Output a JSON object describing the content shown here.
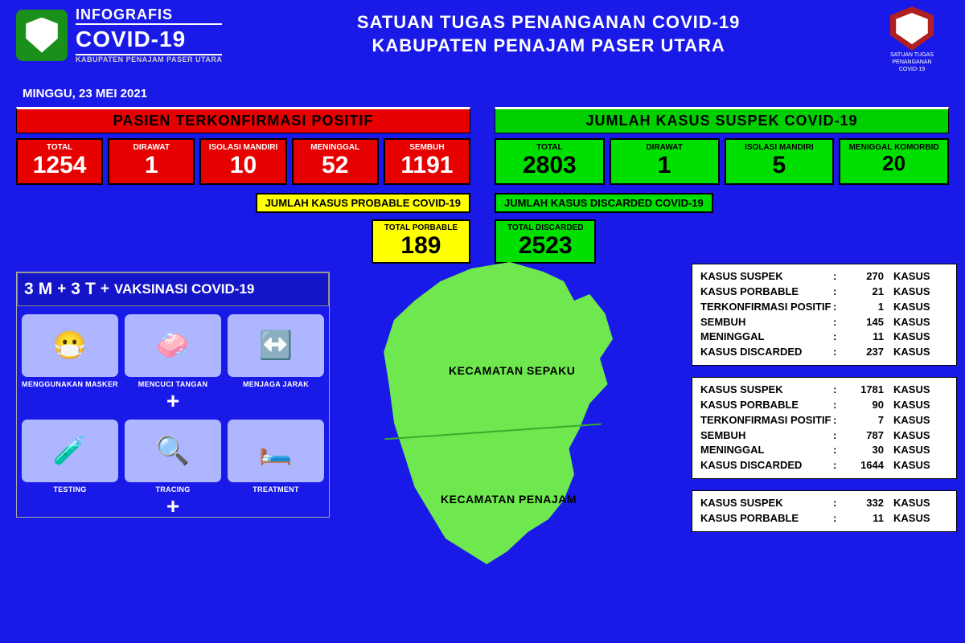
{
  "header": {
    "brand_l1": "INFOGRAFIS",
    "brand_l2": "COVID-19",
    "brand_l3": "KABUPATEN PENAJAM PASER UTARA",
    "title_l1": "SATUAN TUGAS PENANGANAN COVID-19",
    "title_l2": "KABUPATEN PENAJAM PASER UTARA",
    "badge_l1": "SATUAN TUGAS",
    "badge_l2": "PENANGANAN",
    "badge_l3": "COVID-19"
  },
  "date": "MINGGU, 23 MEI  2021",
  "positif": {
    "banner": "PASIEN TERKONFIRMASI POSITIF",
    "boxes": [
      {
        "label": "TOTAL",
        "value": "1254"
      },
      {
        "label": "DIRAWAT",
        "value": "1"
      },
      {
        "label": "ISOLASI MANDIRI",
        "value": "10"
      },
      {
        "label": "MENINGGAL",
        "value": "52"
      },
      {
        "label": "SEMBUH",
        "value": "1191"
      }
    ]
  },
  "suspek": {
    "banner": "JUMLAH KASUS SUSPEK COVID-19",
    "boxes": [
      {
        "label": "TOTAL",
        "value": "2803"
      },
      {
        "label": "DIRAWAT",
        "value": "1"
      },
      {
        "label": "ISOLASI MANDIRI",
        "value": "5"
      },
      {
        "label": "MENIGGAL KOMORBID",
        "value": "20"
      }
    ]
  },
  "probable": {
    "banner": "JUMLAH KASUS PROBABLE COVID-19",
    "box_label": "TOTAL PORBABLE",
    "box_value": "189"
  },
  "discarded": {
    "banner": "JUMLAH KASUS DISCARDED COVID-19",
    "box_label": "TOTAL DISCARDED",
    "box_value": "2523"
  },
  "protokol": {
    "prefix_n1": "3",
    "prefix_l1": "M",
    "plus": "+",
    "prefix_n2": "3",
    "prefix_l2": "T",
    "suffix": "VAKSINASI COVID-19",
    "row1": [
      {
        "icon": "😷",
        "label": "MENGGUNAKAN MASKER"
      },
      {
        "icon": "🧼",
        "label": "MENCUCI TANGAN"
      },
      {
        "icon": "↔️",
        "label": "MENJAGA JARAK"
      }
    ],
    "row2": [
      {
        "icon": "🧪",
        "label": "TESTING"
      },
      {
        "icon": "🔍",
        "label": "TRACING"
      },
      {
        "icon": "🛏️",
        "label": "TREATMENT"
      }
    ]
  },
  "map": {
    "region1": "KECAMATAN SEPAKU",
    "region2": "KECAMATAN PENAJAM"
  },
  "details": [
    {
      "rows": [
        {
          "k": "KASUS SUSPEK",
          "v": "270",
          "u": "KASUS"
        },
        {
          "k": "KASUS PORBABLE",
          "v": "21",
          "u": "KASUS"
        },
        {
          "k": "TERKONFIRMASI POSITIF",
          "v": "1",
          "u": "KASUS"
        },
        {
          "k": "SEMBUH",
          "v": "145",
          "u": "KASUS"
        },
        {
          "k": "MENINGGAL",
          "v": "11",
          "u": "KASUS"
        },
        {
          "k": "KASUS DISCARDED",
          "v": "237",
          "u": "KASUS"
        }
      ]
    },
    {
      "rows": [
        {
          "k": "KASUS SUSPEK",
          "v": "1781",
          "u": "KASUS"
        },
        {
          "k": "KASUS PORBABLE",
          "v": "90",
          "u": "KASUS"
        },
        {
          "k": "TERKONFIRMASI POSITIF",
          "v": "7",
          "u": "KASUS"
        },
        {
          "k": "SEMBUH",
          "v": "787",
          "u": "KASUS"
        },
        {
          "k": "MENINGGAL",
          "v": "30",
          "u": "KASUS"
        },
        {
          "k": "KASUS DISCARDED",
          "v": "1644",
          "u": "KASUS"
        }
      ]
    },
    {
      "rows": [
        {
          "k": "KASUS SUSPEK",
          "v": "332",
          "u": "KASUS"
        },
        {
          "k": "KASUS PORBABLE",
          "v": "11",
          "u": "KASUS"
        }
      ]
    }
  ],
  "colors": {
    "bg": "#1a1aE8",
    "red": "#e60000",
    "green": "#00e000",
    "green_banner": "#00d000",
    "yellow": "#ffff00",
    "map": "#6fe84f",
    "icon_bg": "#aeb6ff"
  }
}
